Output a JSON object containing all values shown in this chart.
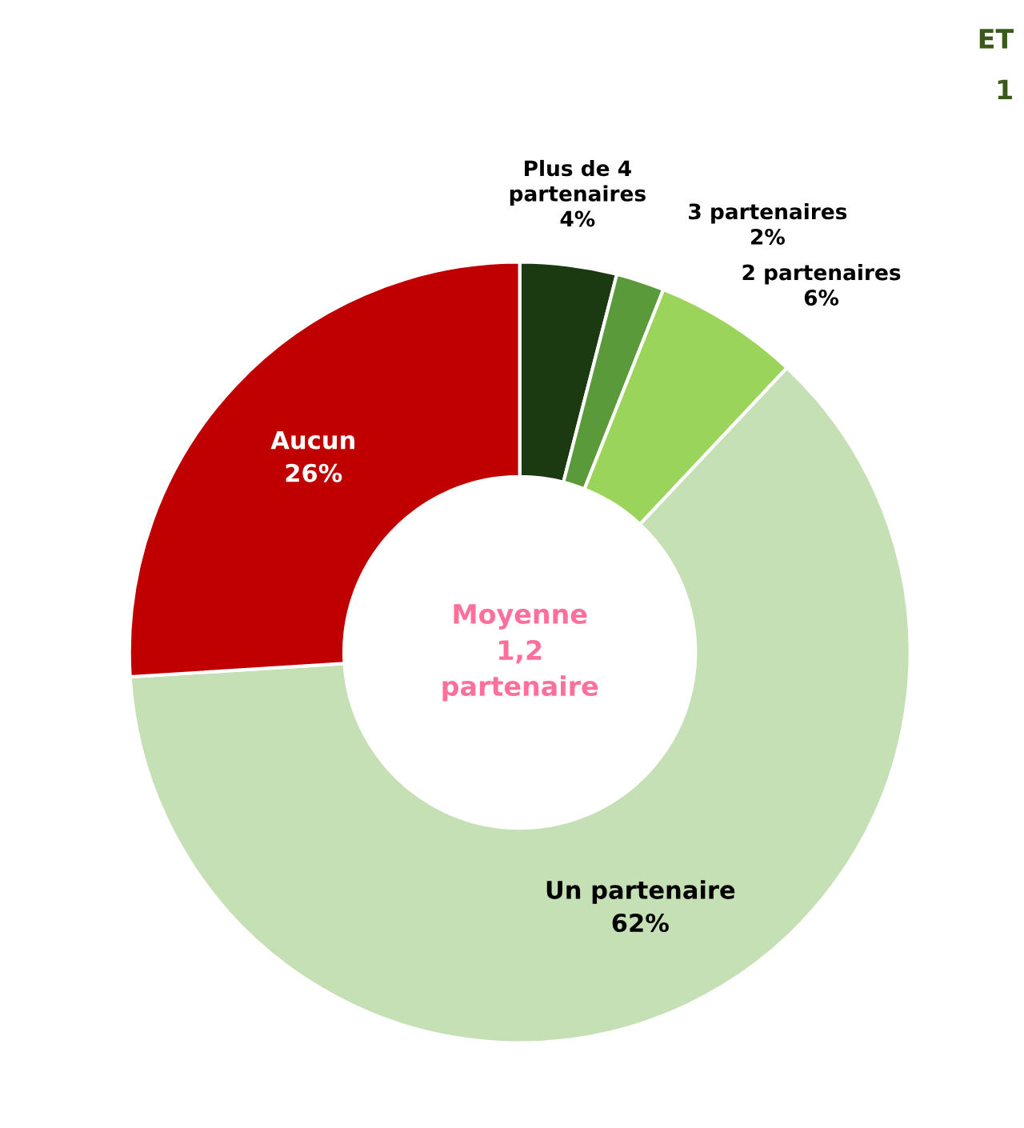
{
  "chart_data": {
    "type": "donut",
    "categories": [
      "Plus de 4\npartenaires",
      "3 partenaires",
      "2 partenaires",
      "Un partenaire",
      "Aucun"
    ],
    "values": [
      4,
      2,
      6,
      62,
      26
    ],
    "colors": [
      "#1c3a12",
      "#5a9a3a",
      "#9ad45a",
      "#c5e0b4",
      "#c00000"
    ],
    "value_labels": [
      "4%",
      "2%",
      "6%",
      "62%",
      "26%"
    ],
    "subtitle": "Moyenne\n1,2\npartenaire",
    "annotations": [
      "ET",
      "1"
    ],
    "legend": false
  }
}
